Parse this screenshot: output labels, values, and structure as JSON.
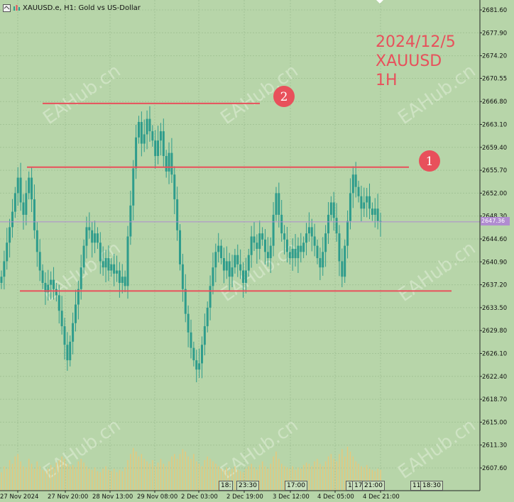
{
  "window": {
    "symbol_title": "XAUUSD.e, H1:  Gold vs US-Dollar"
  },
  "annotation": {
    "line1": "2024/12/5",
    "line2": "XAUUSD",
    "line3": "1H"
  },
  "markers": [
    {
      "label": "2"
    },
    {
      "label": "1"
    }
  ],
  "watermark": "EAHub.cn",
  "current_price": "2647.36",
  "time_boxes": [
    "18:",
    "23:30",
    "17:00",
    "11:",
    "17:",
    "21:00",
    "11:",
    "18:30"
  ],
  "colors": {
    "background": "#b7d5a9",
    "candle": "#2e9c8c",
    "level_line": "#e8505b",
    "price_line": "#b08cd0",
    "volume": "#e8c77a",
    "marker": "#e8505b"
  },
  "chart_data": {
    "type": "candlestick",
    "symbol": "XAUUSD.e",
    "timeframe": "H1",
    "ylim": [
      2606.0,
      2683.0
    ],
    "y_ticks": [
      "2681.60",
      "2677.90",
      "2674.20",
      "2670.55",
      "2666.80",
      "2663.10",
      "2659.40",
      "2655.70",
      "2652.00",
      "2648.30",
      "2644.60",
      "2640.90",
      "2637.20",
      "2633.50",
      "2629.80",
      "2626.10",
      "2622.40",
      "2618.70",
      "2615.00",
      "2611.30",
      "2607.60"
    ],
    "x_ticks": [
      "27 Nov 2024",
      "27 Nov 20:00",
      "28 Nov 13:00",
      "29 Nov 08:00",
      "2 Dec 03:00",
      "2 Dec 19:00",
      "3 Dec 12:00",
      "4 Dec 05:00",
      "4 Dec 21:00"
    ],
    "current_price": 2647.36,
    "levels": [
      {
        "label": "2",
        "price": 2666.5
      },
      {
        "label": "1",
        "price": 2656.2
      },
      {
        "label": "",
        "price": 2636.2
      }
    ],
    "closes": [
      2638.5,
      2641.0,
      2644.0,
      2646.5,
      2649.0,
      2652.0,
      2654.5,
      2650.5,
      2648.5,
      2652.0,
      2654.5,
      2651.0,
      2646.0,
      2642.5,
      2639.5,
      2637.5,
      2636.0,
      2637.2,
      2638.0,
      2636.5,
      2635.5,
      2633.0,
      2630.5,
      2627.5,
      2625.0,
      2628.0,
      2631.0,
      2634.0,
      2636.5,
      2640.0,
      2643.5,
      2646.5,
      2646.0,
      2644.0,
      2645.5,
      2644.0,
      2641.0,
      2640.0,
      2641.5,
      2639.5,
      2640.5,
      2639.0,
      2639.5,
      2637.5,
      2638.5,
      2637.0,
      2645.0,
      2650.0,
      2656.0,
      2661.0,
      2663.5,
      2660.0,
      2661.5,
      2664.0,
      2662.0,
      2660.5,
      2658.0,
      2660.5,
      2662.0,
      2658.0,
      2655.5,
      2658.5,
      2655.0,
      2651.0,
      2646.0,
      2640.5,
      2636.5,
      2632.5,
      2629.5,
      2627.0,
      2625.0,
      2623.5,
      2624.5,
      2627.5,
      2630.5,
      2633.5,
      2637.0,
      2640.0,
      2642.5,
      2643.5,
      2641.5,
      2639.5,
      2641.0,
      2638.5,
      2640.0,
      2642.0,
      2640.5,
      2639.5,
      2637.5,
      2639.5,
      2642.0,
      2645.0,
      2644.0,
      2643.0,
      2645.5,
      2644.5,
      2642.5,
      2641.5,
      2643.5,
      2648.5,
      2652.0,
      2648.5,
      2645.5,
      2644.5,
      2642.5,
      2641.5,
      2643.0,
      2641.5,
      2643.5,
      2642.5,
      2644.0,
      2645.5,
      2646.5,
      2645.0,
      2643.5,
      2641.5,
      2640.0,
      2642.5,
      2645.5,
      2648.5,
      2650.5,
      2648.0,
      2645.5,
      2641.0,
      2638.5,
      2643.5,
      2647.5,
      2652.0,
      2655.0,
      2653.0,
      2651.5,
      2649.5,
      2650.5,
      2651.5,
      2649.5,
      2648.5,
      2649.5,
      2647.5,
      2647.36
    ],
    "volume": [
      15,
      20,
      18,
      25,
      22,
      28,
      30,
      24,
      20,
      19,
      26,
      22,
      18,
      24,
      20,
      17,
      16,
      18,
      21,
      19,
      23,
      25,
      28,
      26,
      22,
      20,
      21,
      19,
      24,
      26,
      23,
      20,
      18,
      17,
      19,
      16,
      15,
      18,
      20,
      17,
      16,
      18,
      15,
      17,
      16,
      19,
      25,
      30,
      35,
      32,
      28,
      30,
      26,
      24,
      22,
      25,
      20,
      23,
      26,
      22,
      20,
      24,
      28,
      30,
      26,
      30,
      34,
      32,
      28,
      26,
      30,
      24,
      22,
      20,
      25,
      28,
      26,
      24,
      22,
      20,
      18,
      17,
      19,
      16,
      18,
      20,
      17,
      16,
      15,
      18,
      20,
      22,
      19,
      17,
      21,
      24,
      20,
      18,
      22,
      28,
      32,
      26,
      22,
      20,
      19,
      18,
      20,
      17,
      19,
      18,
      21,
      23,
      22,
      20,
      24,
      26,
      22,
      20,
      24,
      28,
      30,
      26,
      24,
      30,
      34,
      28,
      36,
      32,
      28,
      24,
      22,
      20,
      19,
      21,
      18,
      17,
      16,
      18,
      17
    ]
  }
}
